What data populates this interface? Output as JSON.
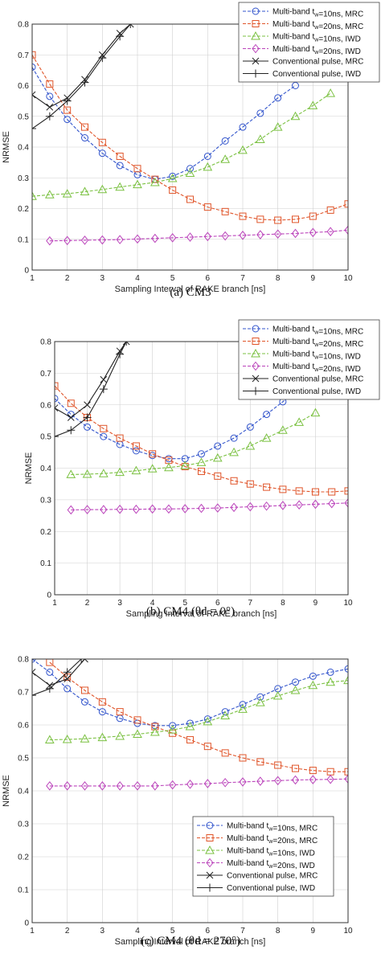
{
  "chart_data": [
    {
      "type": "line",
      "caption": "(a) CM3",
      "xlabel": "Sampling Interval of RAKE branch [ns]",
      "ylabel": "NRMSE",
      "xlim": [
        1,
        10
      ],
      "ylim": [
        0,
        0.8
      ],
      "xticks": [
        "1",
        "2",
        "3",
        "4",
        "5",
        "6",
        "7",
        "8",
        "9",
        "10"
      ],
      "yticks": [
        "0",
        "0.1",
        "0.2",
        "0.3",
        "0.4",
        "0.5",
        "0.6",
        "0.7",
        "0.8"
      ],
      "grid": true,
      "legend": "top-right",
      "series": [
        {
          "name": "Multi-band t_w=10ns, MRC",
          "color": "#3355cc",
          "marker": "circle",
          "dash": "4,2",
          "x": [
            1,
            1.5,
            2,
            2.5,
            3,
            3.5,
            4,
            4.5,
            5,
            5.5,
            6,
            6.5,
            7,
            7.5,
            8,
            8.5
          ],
          "y": [
            0.66,
            0.565,
            0.49,
            0.43,
            0.38,
            0.34,
            0.31,
            0.295,
            0.305,
            0.33,
            0.37,
            0.42,
            0.465,
            0.51,
            0.56,
            0.6
          ]
        },
        {
          "name": "Multi-band t_w=20ns, MRC",
          "color": "#e0552a",
          "marker": "square",
          "dash": "4,2",
          "x": [
            1,
            1.5,
            2,
            2.5,
            3,
            3.5,
            4,
            4.5,
            5,
            5.5,
            6,
            6.5,
            7,
            7.5,
            8,
            8.5,
            9,
            9.5,
            10
          ],
          "y": [
            0.7,
            0.605,
            0.52,
            0.465,
            0.415,
            0.37,
            0.33,
            0.295,
            0.26,
            0.23,
            0.205,
            0.19,
            0.175,
            0.165,
            0.162,
            0.165,
            0.175,
            0.195,
            0.215
          ]
        },
        {
          "name": "Multi-band t_w=10ns, IWD",
          "color": "#7bc142",
          "marker": "triangle",
          "dash": "4,2",
          "x": [
            1,
            1.5,
            2,
            2.5,
            3,
            3.5,
            4,
            4.5,
            5,
            5.5,
            6,
            6.5,
            7,
            7.5,
            8,
            8.5,
            9,
            9.5
          ],
          "y": [
            0.24,
            0.245,
            0.248,
            0.255,
            0.262,
            0.27,
            0.278,
            0.285,
            0.298,
            0.315,
            0.335,
            0.36,
            0.39,
            0.425,
            0.465,
            0.5,
            0.535,
            0.575
          ]
        },
        {
          "name": "Multi-band t_w=20ns, IWD",
          "color": "#bb44bb",
          "marker": "diamond",
          "dash": "4,2",
          "x": [
            1.5,
            2,
            2.5,
            3,
            3.5,
            4,
            4.5,
            5,
            5.5,
            6,
            6.5,
            7,
            7.5,
            8,
            8.5,
            9,
            9.5,
            10
          ],
          "y": [
            0.095,
            0.096,
            0.097,
            0.098,
            0.099,
            0.101,
            0.103,
            0.105,
            0.107,
            0.109,
            0.111,
            0.113,
            0.115,
            0.117,
            0.119,
            0.122,
            0.125,
            0.13
          ]
        },
        {
          "name": "Conventional pulse, MRC",
          "color": "#222222",
          "marker": "x",
          "dash": "",
          "x": [
            1,
            1.5,
            2,
            2.5,
            3,
            3.5,
            3.8
          ],
          "y": [
            0.57,
            0.53,
            0.56,
            0.62,
            0.7,
            0.77,
            0.8
          ]
        },
        {
          "name": "Conventional pulse, IWD",
          "color": "#222222",
          "marker": "plus",
          "dash": "",
          "x": [
            1,
            1.5,
            2,
            2.5,
            3,
            3.5,
            3.8
          ],
          "y": [
            0.46,
            0.5,
            0.55,
            0.61,
            0.69,
            0.76,
            0.8
          ]
        }
      ]
    },
    {
      "type": "line",
      "caption": "(b) CM4 (θd = 0°)",
      "xlabel": "Sampling Interval of RAKE branch [ns]",
      "ylabel": "NRMSE",
      "xlim": [
        1,
        10
      ],
      "ylim": [
        0,
        0.8
      ],
      "xticks": [
        "1",
        "2",
        "3",
        "4",
        "5",
        "6",
        "7",
        "8",
        "9",
        "10"
      ],
      "yticks": [
        "0",
        "0.1",
        "0.2",
        "0.3",
        "0.4",
        "0.5",
        "0.6",
        "0.7",
        "0.8"
      ],
      "grid": true,
      "legend": "top-right",
      "series": [
        {
          "name": "Multi-band t_w=10ns, MRC",
          "color": "#3355cc",
          "marker": "circle",
          "dash": "4,2",
          "x": [
            1,
            1.5,
            2,
            2.5,
            3,
            3.5,
            4,
            4.5,
            5,
            5.5,
            6,
            6.5,
            7,
            7.5,
            8,
            8.5
          ],
          "y": [
            0.62,
            0.57,
            0.53,
            0.5,
            0.475,
            0.455,
            0.44,
            0.43,
            0.43,
            0.445,
            0.47,
            0.495,
            0.53,
            0.57,
            0.61,
            0.65
          ]
        },
        {
          "name": "Multi-band t_w=20ns, MRC",
          "color": "#e0552a",
          "marker": "square",
          "dash": "4,2",
          "x": [
            1,
            1.5,
            2,
            2.5,
            3,
            3.5,
            4,
            4.5,
            5,
            5.5,
            6,
            6.5,
            7,
            7.5,
            8,
            8.5,
            9,
            9.5,
            10
          ],
          "y": [
            0.66,
            0.605,
            0.56,
            0.525,
            0.495,
            0.47,
            0.445,
            0.425,
            0.405,
            0.39,
            0.375,
            0.36,
            0.35,
            0.34,
            0.333,
            0.328,
            0.325,
            0.325,
            0.328
          ]
        },
        {
          "name": "Multi-band t_w=10ns, IWD",
          "color": "#7bc142",
          "marker": "triangle",
          "dash": "4,2",
          "x": [
            1.5,
            2,
            2.5,
            3,
            3.5,
            4,
            4.5,
            5,
            5.5,
            6,
            6.5,
            7,
            7.5,
            8,
            8.5,
            9
          ],
          "y": [
            0.38,
            0.381,
            0.383,
            0.387,
            0.392,
            0.398,
            0.402,
            0.408,
            0.418,
            0.432,
            0.45,
            0.47,
            0.495,
            0.52,
            0.545,
            0.575
          ]
        },
        {
          "name": "Multi-band t_w=20ns, IWD",
          "color": "#bb44bb",
          "marker": "diamond",
          "dash": "4,2",
          "x": [
            1.5,
            2,
            2.5,
            3,
            3.5,
            4,
            4.5,
            5,
            5.5,
            6,
            6.5,
            7,
            7.5,
            8,
            8.5,
            9,
            9.5,
            10
          ],
          "y": [
            0.268,
            0.269,
            0.269,
            0.27,
            0.27,
            0.271,
            0.271,
            0.272,
            0.273,
            0.274,
            0.276,
            0.278,
            0.28,
            0.282,
            0.284,
            0.286,
            0.288,
            0.29
          ]
        },
        {
          "name": "Conventional pulse, MRC",
          "color": "#222222",
          "marker": "x",
          "dash": "",
          "x": [
            1,
            1.5,
            2,
            2.5,
            3,
            3.2
          ],
          "y": [
            0.59,
            0.56,
            0.6,
            0.68,
            0.77,
            0.8
          ]
        },
        {
          "name": "Conventional pulse, IWD",
          "color": "#222222",
          "marker": "plus",
          "dash": "",
          "x": [
            1,
            1.5,
            2,
            2.5,
            3,
            3.2
          ],
          "y": [
            0.5,
            0.52,
            0.56,
            0.65,
            0.76,
            0.8
          ]
        }
      ]
    },
    {
      "type": "line",
      "caption": "(c) CM4 (θd = 270°)",
      "xlabel": "Sampling Interval of RAKE branch [ns]",
      "ylabel": "NRMSE",
      "xlim": [
        1,
        10
      ],
      "ylim": [
        0,
        0.8
      ],
      "xticks": [
        "1",
        "2",
        "3",
        "4",
        "5",
        "6",
        "7",
        "8",
        "9",
        "10"
      ],
      "yticks": [
        "0",
        "0.1",
        "0.2",
        "0.3",
        "0.4",
        "0.5",
        "0.6",
        "0.7",
        "0.8"
      ],
      "grid": true,
      "legend": "bottom-right",
      "series": [
        {
          "name": "Multi-band t_w=10ns, MRC",
          "color": "#3355cc",
          "marker": "circle",
          "dash": "4,2",
          "x": [
            1,
            1.5,
            2,
            2.5,
            3,
            3.5,
            4,
            4.5,
            5,
            5.5,
            6,
            6.5,
            7,
            7.5,
            8,
            8.5,
            9,
            9.5,
            10
          ],
          "y": [
            0.8,
            0.76,
            0.71,
            0.67,
            0.64,
            0.62,
            0.605,
            0.598,
            0.598,
            0.605,
            0.618,
            0.64,
            0.662,
            0.685,
            0.71,
            0.73,
            0.748,
            0.76,
            0.77
          ]
        },
        {
          "name": "Multi-band t_w=20ns, MRC",
          "color": "#e0552a",
          "marker": "square",
          "dash": "4,2",
          "x": [
            1.5,
            2,
            2.5,
            3,
            3.5,
            4,
            4.5,
            5,
            5.5,
            6,
            6.5,
            7,
            7.5,
            8,
            8.5,
            9,
            9.5,
            10
          ],
          "y": [
            0.79,
            0.745,
            0.705,
            0.67,
            0.64,
            0.615,
            0.595,
            0.575,
            0.555,
            0.535,
            0.515,
            0.5,
            0.488,
            0.478,
            0.468,
            0.462,
            0.458,
            0.458
          ]
        },
        {
          "name": "Multi-band t_w=10ns, IWD",
          "color": "#7bc142",
          "marker": "triangle",
          "dash": "4,2",
          "x": [
            1.5,
            2,
            2.5,
            3,
            3.5,
            4,
            4.5,
            5,
            5.5,
            6,
            6.5,
            7,
            7.5,
            8,
            8.5,
            9,
            9.5,
            10
          ],
          "y": [
            0.555,
            0.556,
            0.558,
            0.562,
            0.566,
            0.572,
            0.578,
            0.585,
            0.595,
            0.61,
            0.628,
            0.648,
            0.668,
            0.688,
            0.705,
            0.72,
            0.73,
            0.735
          ]
        },
        {
          "name": "Multi-band t_w=20ns, IWD",
          "color": "#bb44bb",
          "marker": "diamond",
          "dash": "4,2",
          "x": [
            1.5,
            2,
            2.5,
            3,
            3.5,
            4,
            4.5,
            5,
            5.5,
            6,
            6.5,
            7,
            7.5,
            8,
            8.5,
            9,
            9.5,
            10
          ],
          "y": [
            0.415,
            0.415,
            0.415,
            0.415,
            0.415,
            0.415,
            0.415,
            0.418,
            0.42,
            0.422,
            0.425,
            0.427,
            0.429,
            0.431,
            0.433,
            0.434,
            0.435,
            0.436
          ]
        },
        {
          "name": "Conventional pulse, MRC",
          "color": "#222222",
          "marker": "x",
          "dash": "",
          "x": [
            1,
            1.5,
            2,
            2.5
          ],
          "y": [
            0.76,
            0.72,
            0.74,
            0.8
          ]
        },
        {
          "name": "Conventional pulse, IWD",
          "color": "#222222",
          "marker": "plus",
          "dash": "",
          "x": [
            1,
            1.5,
            2,
            2.4
          ],
          "y": [
            0.69,
            0.71,
            0.76,
            0.8
          ]
        }
      ]
    }
  ]
}
